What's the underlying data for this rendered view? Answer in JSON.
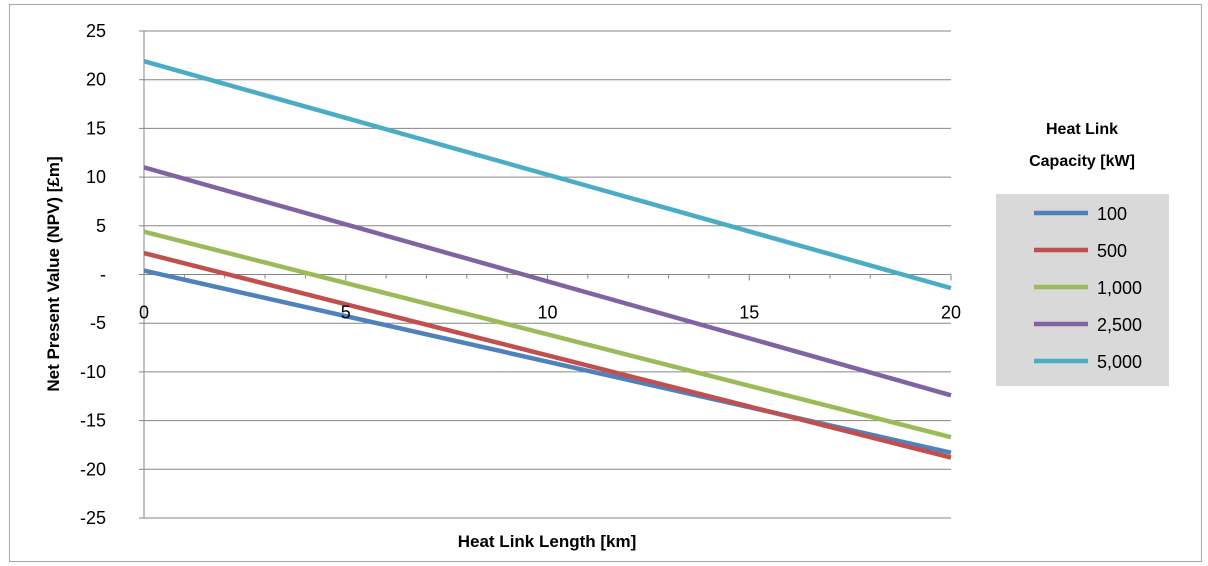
{
  "chart_data": {
    "type": "line",
    "xlabel": "Heat Link Length [km]",
    "ylabel": "Net Present Value (NPV) [£m]",
    "xlim": [
      0,
      20
    ],
    "ylim": [
      -25,
      25
    ],
    "x_ticks": [
      "0",
      "5",
      "10",
      "15",
      "20"
    ],
    "y_ticks": [
      "25",
      "20",
      "15",
      "10",
      "5",
      "-",
      "-5",
      "-10",
      "-15",
      "-20",
      "-25"
    ],
    "y_tick_values": [
      25,
      20,
      15,
      10,
      5,
      0,
      -5,
      -10,
      -15,
      -20,
      -25
    ],
    "grid": "horizontal",
    "legend_title": "Heat Link Capacity [kW]",
    "legend_title_lines": [
      "Heat Link",
      "Capacity [kW]"
    ],
    "legend_placement": "right",
    "x": [
      0,
      20
    ],
    "series": [
      {
        "name": "100",
        "color": "#4f81bd",
        "values": [
          0.4,
          -18.3
        ]
      },
      {
        "name": "500",
        "color": "#c0504d",
        "values": [
          2.2,
          -18.8
        ]
      },
      {
        "name": "1,000",
        "color": "#9bbb59",
        "values": [
          4.4,
          -16.7
        ]
      },
      {
        "name": "2,500",
        "color": "#8064a2",
        "values": [
          11.0,
          -12.4
        ]
      },
      {
        "name": "5,000",
        "color": "#4bacc6",
        "values": [
          21.9,
          -1.4
        ]
      }
    ]
  }
}
